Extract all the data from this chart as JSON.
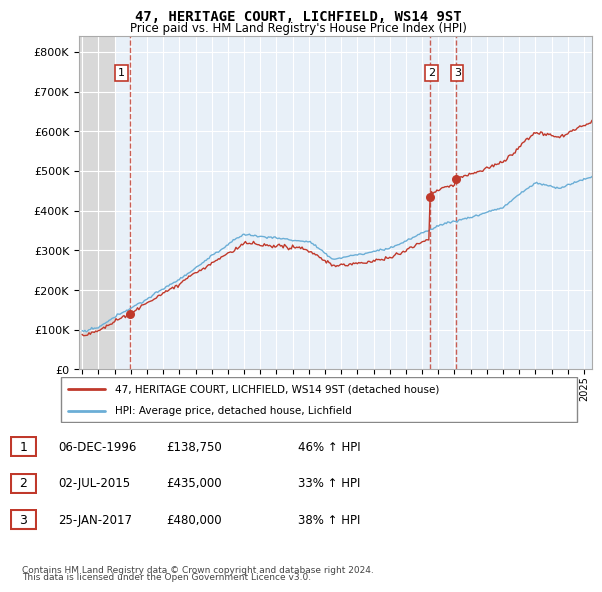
{
  "title": "47, HERITAGE COURT, LICHFIELD, WS14 9ST",
  "subtitle": "Price paid vs. HM Land Registry's House Price Index (HPI)",
  "legend_line1": "47, HERITAGE COURT, LICHFIELD, WS14 9ST (detached house)",
  "legend_line2": "HPI: Average price, detached house, Lichfield",
  "footer1": "Contains HM Land Registry data © Crown copyright and database right 2024.",
  "footer2": "This data is licensed under the Open Government Licence v3.0.",
  "table": [
    [
      "1",
      "06-DEC-1996",
      "£138,750",
      "46% ↑ HPI"
    ],
    [
      "2",
      "02-JUL-2015",
      "£435,000",
      "33% ↑ HPI"
    ],
    [
      "3",
      "25-JAN-2017",
      "£480,000",
      "38% ↑ HPI"
    ]
  ],
  "sale_dates": [
    1996.93,
    2015.5,
    2017.07
  ],
  "sale_prices": [
    138750,
    435000,
    480000
  ],
  "hpi_color": "#6baed6",
  "price_color": "#c0392b",
  "ylim": [
    0,
    840000
  ],
  "xlim_start": 1993.8,
  "xlim_end": 2025.5,
  "hatch_end": 1994.08
}
